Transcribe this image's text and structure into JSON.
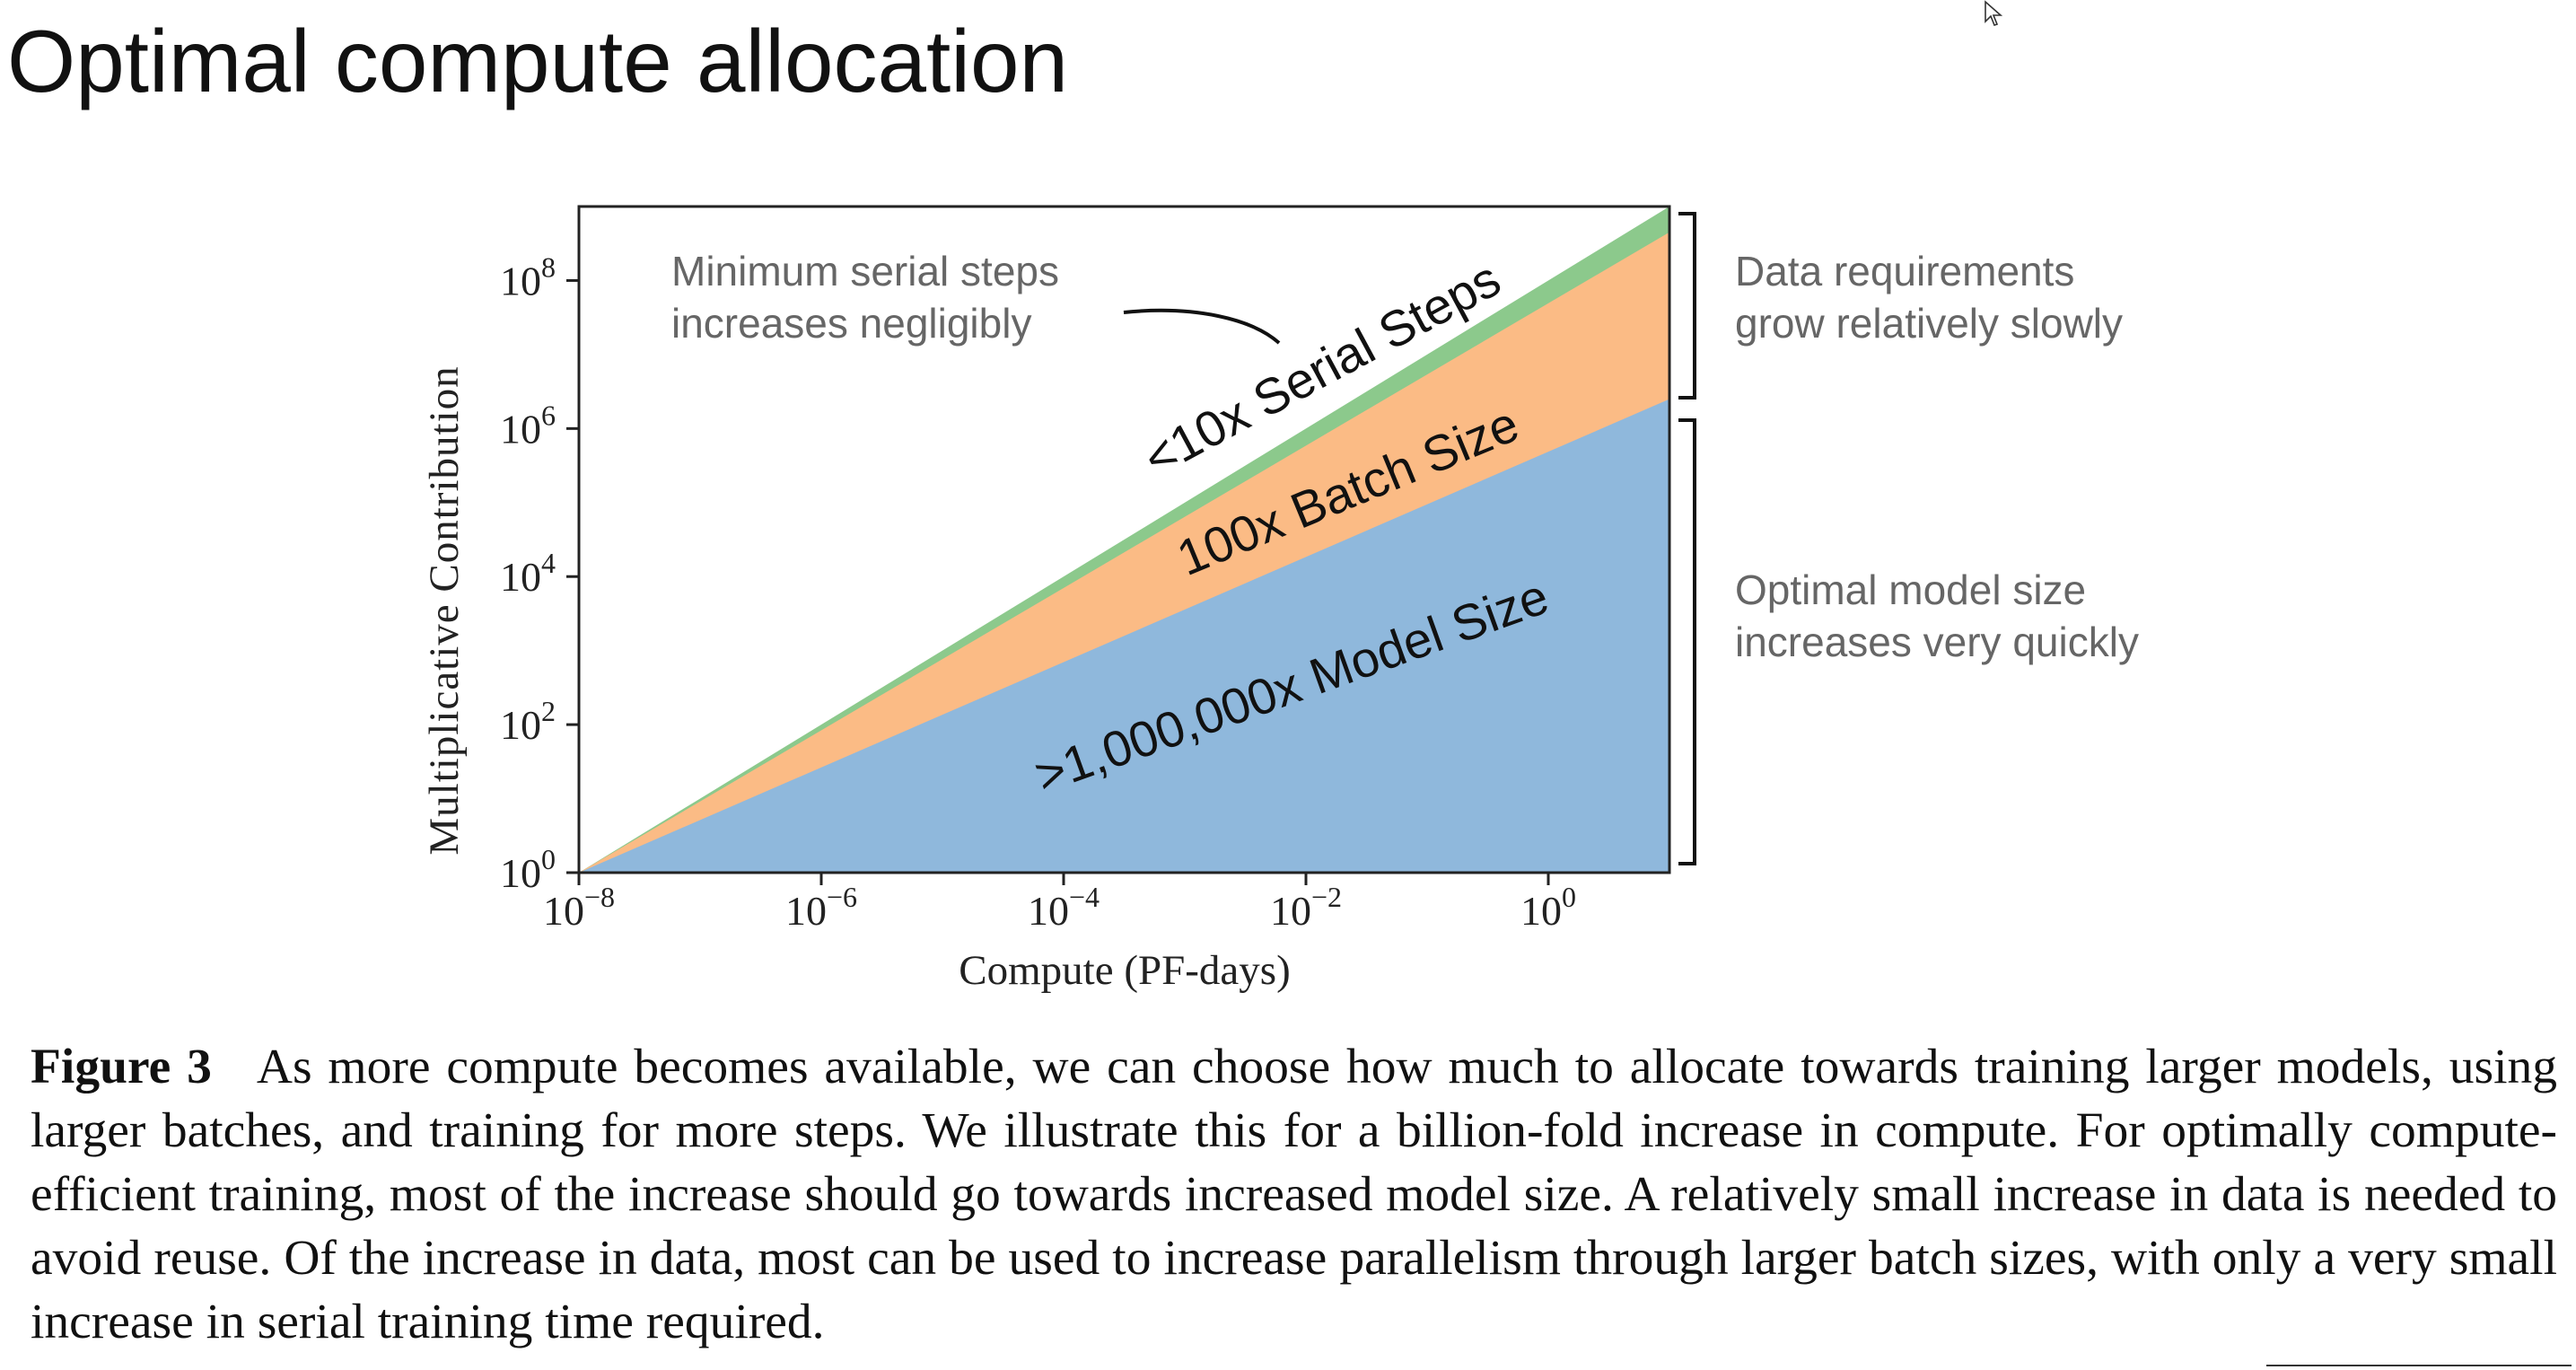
{
  "slide": {
    "title": "Optimal compute allocation"
  },
  "chart_data": {
    "type": "area",
    "xlabel": "Compute (PF-days)",
    "ylabel": "Multiplicative Contribution",
    "x_scale": "log",
    "y_scale": "log",
    "xlim": [
      1e-08,
      10
    ],
    "ylim": [
      1,
      1000000000.0
    ],
    "x_ticks": [
      {
        "value": 1e-08,
        "base": "10",
        "exp": "−8"
      },
      {
        "value": 1e-06,
        "base": "10",
        "exp": "−6"
      },
      {
        "value": 0.0001,
        "base": "10",
        "exp": "−4"
      },
      {
        "value": 0.01,
        "base": "10",
        "exp": "−2"
      },
      {
        "value": 1,
        "base": "10",
        "exp": "0"
      }
    ],
    "y_ticks": [
      {
        "value": 1,
        "base": "10",
        "exp": "0"
      },
      {
        "value": 100,
        "base": "10",
        "exp": "2"
      },
      {
        "value": 10000,
        "base": "10",
        "exp": "4"
      },
      {
        "value": 1000000,
        "base": "10",
        "exp": "6"
      },
      {
        "value": 100000000,
        "base": "10",
        "exp": "8"
      }
    ],
    "x": [
      1e-08,
      10
    ],
    "series": [
      {
        "name": ">1,000,000x Model Size",
        "color": "#8fb8dc",
        "values": [
          1,
          2500000
        ]
      },
      {
        "name": "100x Batch Size",
        "color": "#fbbb85",
        "values": [
          1,
          450000000
        ]
      },
      {
        "name": "<10x Serial Steps",
        "color": "#8cc98c",
        "values": [
          1,
          1000000000
        ]
      }
    ],
    "region_labels": [
      {
        "text": ">1,000,000x Model Size",
        "series": 0
      },
      {
        "text": "100x Batch Size",
        "series": 1
      },
      {
        "text": "<10x Serial Steps",
        "series": 2
      }
    ],
    "annotations": {
      "serial_note_line1": "Minimum serial steps",
      "serial_note_line2": "increases negligibly",
      "data_note_line1": "Data requirements",
      "data_note_line2": "grow relatively slowly",
      "model_note_line1": "Optimal model size",
      "model_note_line2": "increases very quickly"
    },
    "grid": false
  },
  "caption": {
    "label": "Figure 3",
    "text": "As more compute becomes available, we can choose how much to allocate towards training larger models, using larger batches, and training for more steps. We illustrate this for a billion-fold increase in compute. For optimally compute-efficient training, most of the increase should go towards increased model size. A relatively small increase in data is needed to avoid reuse. Of the increase in data, most can be used to increase parallelism through larger batch sizes, with only a very small increase in serial training time required."
  },
  "colors": {
    "model_area": "#8fb8dc",
    "batch_area": "#fbbb85",
    "serial_area": "#8cc98c",
    "annotation_text": "#666666",
    "axis": "#222222"
  },
  "icons": {
    "cursor": "mouse-pointer-icon"
  }
}
